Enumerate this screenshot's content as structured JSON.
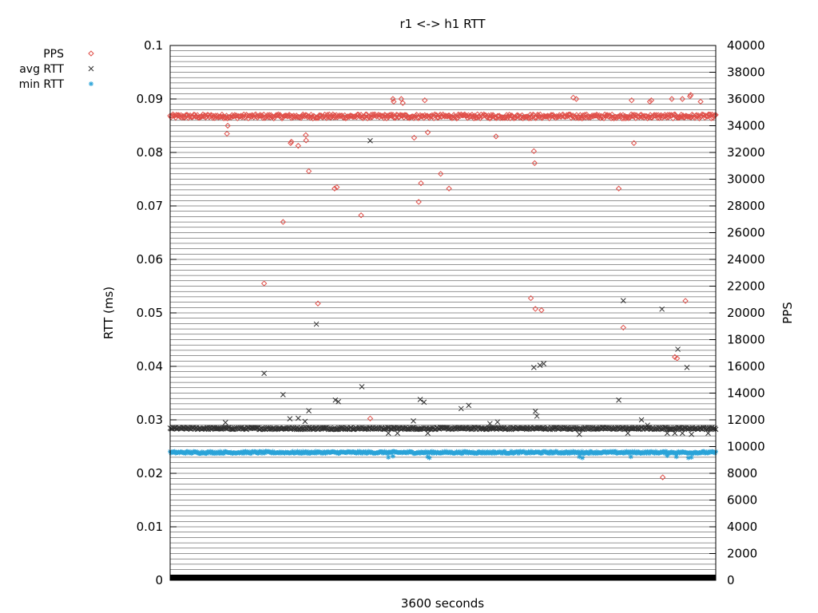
{
  "chart_data": {
    "type": "scatter",
    "title": "r1 <-> h1 RTT",
    "xlabel": "3600 seconds",
    "ylabel": "RTT (ms)",
    "y2label": "PPS",
    "xlim": [
      0,
      3600
    ],
    "ylim": [
      0,
      0.1
    ],
    "y2lim": [
      0,
      40000
    ],
    "yticks": [
      "0",
      "0.01",
      "0.02",
      "0.03",
      "0.04",
      "0.05",
      "0.06",
      "0.07",
      "0.08",
      "0.09",
      "0.1"
    ],
    "y2ticks": [
      "0",
      "2000",
      "4000",
      "6000",
      "8000",
      "10000",
      "12000",
      "14000",
      "16000",
      "18000",
      "20000",
      "22000",
      "24000",
      "26000",
      "28000",
      "30000",
      "32000",
      "34000",
      "36000",
      "38000",
      "40000"
    ],
    "grid": true,
    "legend_position": "top-left",
    "series": [
      {
        "name": "PPS",
        "axis": "right",
        "marker": "diamond",
        "color": "#e0504a",
        "baseline": 34700,
        "outliers": [
          [
            375,
            33400
          ],
          [
            380,
            34000
          ],
          [
            620,
            22200
          ],
          [
            745,
            26800
          ],
          [
            795,
            32700
          ],
          [
            800,
            32800
          ],
          [
            845,
            32500
          ],
          [
            895,
            33300
          ],
          [
            897,
            32900
          ],
          [
            915,
            30600
          ],
          [
            1085,
            29300
          ],
          [
            1100,
            29400
          ],
          [
            975,
            20700
          ],
          [
            1260,
            27300
          ],
          [
            1320,
            12100
          ],
          [
            1470,
            36000
          ],
          [
            1475,
            35800
          ],
          [
            1525,
            36000
          ],
          [
            1535,
            35700
          ],
          [
            1610,
            33100
          ],
          [
            1640,
            28300
          ],
          [
            1655,
            29700
          ],
          [
            1680,
            35900
          ],
          [
            1700,
            33500
          ],
          [
            1785,
            30400
          ],
          [
            1840,
            29300
          ],
          [
            2150,
            33200
          ],
          [
            2380,
            21100
          ],
          [
            2400,
            32100
          ],
          [
            2405,
            31200
          ],
          [
            2410,
            20300
          ],
          [
            2450,
            20200
          ],
          [
            2660,
            36100
          ],
          [
            2680,
            36000
          ],
          [
            2960,
            29300
          ],
          [
            2990,
            18900
          ],
          [
            3045,
            35900
          ],
          [
            3060,
            32700
          ],
          [
            3165,
            35800
          ],
          [
            3175,
            35900
          ],
          [
            3250,
            7700
          ],
          [
            3310,
            36000
          ],
          [
            3330,
            16700
          ],
          [
            3345,
            16600
          ],
          [
            3380,
            36000
          ],
          [
            3400,
            20900
          ],
          [
            3430,
            36200
          ],
          [
            3435,
            36300
          ],
          [
            3500,
            35800
          ]
        ]
      },
      {
        "name": "avg RTT",
        "axis": "left",
        "marker": "x",
        "color": "#303030",
        "baseline": 0.0284,
        "outliers": [
          [
            365,
            0.0295
          ],
          [
            620,
            0.0387
          ],
          [
            745,
            0.0347
          ],
          [
            790,
            0.0302
          ],
          [
            845,
            0.0303
          ],
          [
            890,
            0.0297
          ],
          [
            915,
            0.0317
          ],
          [
            965,
            0.0479
          ],
          [
            1090,
            0.0337
          ],
          [
            1110,
            0.0334
          ],
          [
            1265,
            0.0362
          ],
          [
            1320,
            0.0822
          ],
          [
            1440,
            0.0275
          ],
          [
            1500,
            0.0275
          ],
          [
            1605,
            0.0298
          ],
          [
            1650,
            0.0338
          ],
          [
            1675,
            0.0333
          ],
          [
            1700,
            0.0275
          ],
          [
            1920,
            0.0321
          ],
          [
            1970,
            0.0327
          ],
          [
            2110,
            0.0293
          ],
          [
            2160,
            0.0296
          ],
          [
            2400,
            0.0398
          ],
          [
            2410,
            0.0316
          ],
          [
            2420,
            0.0307
          ],
          [
            2440,
            0.0402
          ],
          [
            2465,
            0.0405
          ],
          [
            2700,
            0.0273
          ],
          [
            2960,
            0.0337
          ],
          [
            2990,
            0.0523
          ],
          [
            3020,
            0.0275
          ],
          [
            3110,
            0.03
          ],
          [
            3150,
            0.029
          ],
          [
            3245,
            0.0507
          ],
          [
            3280,
            0.0275
          ],
          [
            3330,
            0.0275
          ],
          [
            3350,
            0.0432
          ],
          [
            3380,
            0.0275
          ],
          [
            3410,
            0.0398
          ],
          [
            3440,
            0.0273
          ],
          [
            3550,
            0.0275
          ]
        ]
      },
      {
        "name": "min RTT",
        "axis": "left",
        "marker": "asterisk",
        "color": "#2aa3d8",
        "baseline": 0.0239,
        "outliers": [
          [
            1440,
            0.023
          ],
          [
            1470,
            0.0232
          ],
          [
            1700,
            0.0231
          ],
          [
            1710,
            0.0229
          ],
          [
            2700,
            0.0231
          ],
          [
            2720,
            0.0229
          ],
          [
            3040,
            0.0231
          ],
          [
            3280,
            0.0233
          ],
          [
            3340,
            0.0231
          ],
          [
            3420,
            0.0229
          ],
          [
            3440,
            0.023
          ]
        ]
      }
    ]
  }
}
